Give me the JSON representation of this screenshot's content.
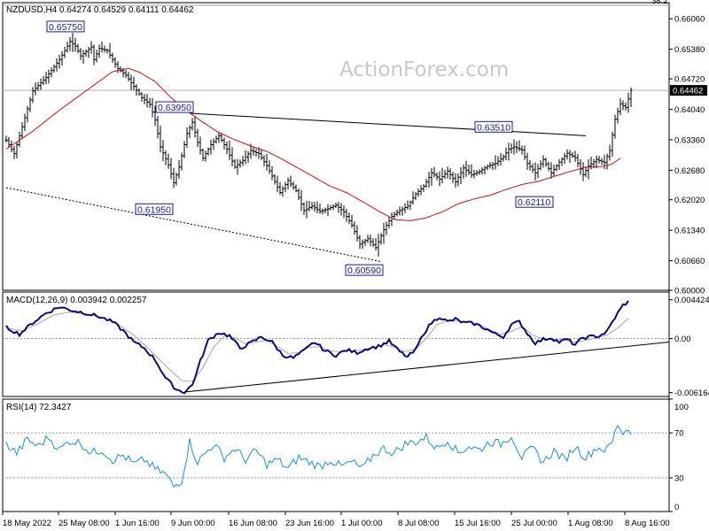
{
  "chart_data": [
    {
      "type": "candlestick",
      "header": "NZDUSD,H4  0.64274 0.64529 0.64111 0.64462",
      "watermark": "ActionForex.com",
      "ylim": [
        0.6,
        0.6642
      ],
      "y_ticks": [
        "0.66060",
        "0.65380",
        "0.64720",
        "0.64040",
        "0.63360",
        "0.62680",
        "0.62020",
        "0.61340",
        "0.60660",
        "0.60000"
      ],
      "y_tick_values": [
        0.6606,
        0.6538,
        0.6472,
        0.6404,
        0.6336,
        0.6268,
        0.6202,
        0.6134,
        0.6066,
        0.6
      ],
      "current_price": "0.64462",
      "current_price_value": 0.64462,
      "fib_label": "38.2",
      "fib_top_value": 0.6636,
      "x_labels": [
        "18 May 2022",
        "25 May 08:00",
        "1 Jun 16:00",
        "9 Jun 00:00",
        "16 Jun 08:00",
        "23 Jun 16:00",
        "1 Jul 00:00",
        "8 Jul 08:00",
        "15 Jul 16:00",
        "25 Jul 00:00",
        "1 Aug 08:00",
        "8 Aug 16:00"
      ],
      "price_anchors": [
        [
          0,
          0.6335
        ],
        [
          3,
          0.6305
        ],
        [
          10,
          0.6445
        ],
        [
          15,
          0.6475
        ],
        [
          20,
          0.6515
        ],
        [
          24,
          0.6555
        ],
        [
          26,
          0.6545
        ],
        [
          28,
          0.6523
        ],
        [
          32,
          0.6543
        ],
        [
          33,
          0.6515
        ],
        [
          35,
          0.654
        ],
        [
          38,
          0.6535
        ],
        [
          42,
          0.6495
        ],
        [
          45,
          0.648
        ],
        [
          48,
          0.6455
        ],
        [
          51,
          0.643
        ],
        [
          54,
          0.6415
        ],
        [
          56,
          0.638
        ],
        [
          58,
          0.632
        ],
        [
          61,
          0.628
        ],
        [
          63,
          0.624
        ],
        [
          65,
          0.6275
        ],
        [
          68,
          0.635
        ],
        [
          70,
          0.6375
        ],
        [
          72,
          0.633
        ],
        [
          74,
          0.6295
        ],
        [
          77,
          0.6325
        ],
        [
          80,
          0.6345
        ],
        [
          83,
          0.6315
        ],
        [
          86,
          0.6275
        ],
        [
          89,
          0.629
        ],
        [
          92,
          0.6312
        ],
        [
          95,
          0.6305
        ],
        [
          98,
          0.6278
        ],
        [
          100,
          0.6255
        ],
        [
          103,
          0.6218
        ],
        [
          106,
          0.6245
        ],
        [
          109,
          0.6222
        ],
        [
          112,
          0.6178
        ],
        [
          115,
          0.6188
        ],
        [
          118,
          0.6176
        ],
        [
          121,
          0.6182
        ],
        [
          124,
          0.619
        ],
        [
          127,
          0.6175
        ],
        [
          130,
          0.6145
        ],
        [
          133,
          0.6103
        ],
        [
          136,
          0.6115
        ],
        [
          139,
          0.6095
        ],
        [
          142,
          0.6135
        ],
        [
          145,
          0.6165
        ],
        [
          148,
          0.6178
        ],
        [
          151,
          0.6188
        ],
        [
          154,
          0.6215
        ],
        [
          157,
          0.6232
        ],
        [
          160,
          0.6262
        ],
        [
          163,
          0.6248
        ],
        [
          166,
          0.6266
        ],
        [
          169,
          0.6242
        ],
        [
          172,
          0.6273
        ],
        [
          175,
          0.6258
        ],
        [
          178,
          0.6265
        ],
        [
          181,
          0.6277
        ],
        [
          184,
          0.6283
        ],
        [
          187,
          0.6298
        ],
        [
          189,
          0.6315
        ],
        [
          191,
          0.632
        ],
        [
          194,
          0.6313
        ],
        [
          196,
          0.6283
        ],
        [
          199,
          0.6262
        ],
        [
          202,
          0.6292
        ],
        [
          205,
          0.6262
        ],
        [
          208,
          0.6286
        ],
        [
          211,
          0.6306
        ],
        [
          214,
          0.6296
        ],
        [
          217,
          0.6258
        ],
        [
          219,
          0.6277
        ],
        [
          222,
          0.6292
        ],
        [
          225,
          0.6285
        ],
        [
          227,
          0.6312
        ],
        [
          229,
          0.6382
        ],
        [
          231,
          0.6416
        ],
        [
          233,
          0.6408
        ],
        [
          235,
          0.6446
        ]
      ],
      "ma_anchors": [
        [
          0,
          0.6315
        ],
        [
          10,
          0.6355
        ],
        [
          20,
          0.6402
        ],
        [
          30,
          0.6445
        ],
        [
          40,
          0.6488
        ],
        [
          46,
          0.6495
        ],
        [
          50,
          0.6487
        ],
        [
          56,
          0.6466
        ],
        [
          62,
          0.643
        ],
        [
          68,
          0.64
        ],
        [
          74,
          0.6375
        ],
        [
          80,
          0.6352
        ],
        [
          86,
          0.6336
        ],
        [
          92,
          0.6322
        ],
        [
          98,
          0.631
        ],
        [
          104,
          0.6292
        ],
        [
          110,
          0.6272
        ],
        [
          116,
          0.6252
        ],
        [
          122,
          0.6232
        ],
        [
          128,
          0.6218
        ],
        [
          134,
          0.6198
        ],
        [
          140,
          0.6177
        ],
        [
          146,
          0.6158
        ],
        [
          152,
          0.6155
        ],
        [
          158,
          0.6162
        ],
        [
          164,
          0.6175
        ],
        [
          170,
          0.6193
        ],
        [
          176,
          0.6204
        ],
        [
          182,
          0.6212
        ],
        [
          188,
          0.6225
        ],
        [
          194,
          0.6236
        ],
        [
          200,
          0.6243
        ],
        [
          206,
          0.6254
        ],
        [
          212,
          0.6265
        ],
        [
          218,
          0.6275
        ],
        [
          224,
          0.6276
        ],
        [
          228,
          0.6282
        ],
        [
          231,
          0.6295
        ]
      ],
      "labels": [
        {
          "text": "0.65750",
          "value": 0.6575,
          "bar": 28,
          "side": "above"
        },
        {
          "text": "0.63950",
          "value": 0.6395,
          "bar": 69,
          "side": "above"
        },
        {
          "text": "0.61950",
          "value": 0.6195,
          "bar": 62,
          "side": "below"
        },
        {
          "text": "0.60590",
          "value": 0.6059,
          "bar": 141,
          "side": "below"
        },
        {
          "text": "0.63510",
          "value": 0.6351,
          "bar": 189,
          "side": "above"
        },
        {
          "text": "0.62110",
          "value": 0.6211,
          "bar": 205,
          "side": "below"
        }
      ],
      "trendlines": [
        {
          "style": "solid",
          "from": [
            69,
            0.6395
          ],
          "to": [
            218,
            0.6345
          ]
        },
        {
          "style": "dotted",
          "from": [
            0,
            0.6229
          ],
          "to": [
            141,
            0.6064
          ]
        }
      ]
    },
    {
      "type": "line",
      "header": "MACD(12,26,9) 0.003942 0.002257",
      "ylim": [
        -0.0066,
        0.0053
      ],
      "y_ticks": [
        "0.004424",
        "0.00",
        "-0.006164"
      ],
      "y_tick_values": [
        0.004424,
        0.0,
        -0.006164
      ],
      "macd_anchors": [
        [
          0,
          0.0013
        ],
        [
          5,
          0.0005
        ],
        [
          10,
          0.0018
        ],
        [
          15,
          0.0029
        ],
        [
          20,
          0.0036
        ],
        [
          25,
          0.0032
        ],
        [
          30,
          0.0029
        ],
        [
          35,
          0.0025
        ],
        [
          40,
          0.0019
        ],
        [
          44,
          0.0009
        ],
        [
          48,
          -0.0004
        ],
        [
          52,
          -0.0011
        ],
        [
          56,
          -0.0024
        ],
        [
          60,
          -0.0045
        ],
        [
          64,
          -0.0058
        ],
        [
          67,
          -0.0061
        ],
        [
          70,
          -0.0053
        ],
        [
          73,
          -0.0026
        ],
        [
          76,
          -0.0002
        ],
        [
          80,
          0.0007
        ],
        [
          84,
          0.0003
        ],
        [
          88,
          -0.0011
        ],
        [
          92,
          -0.0005
        ],
        [
          96,
          0.0002
        ],
        [
          100,
          -0.0004
        ],
        [
          104,
          -0.0019
        ],
        [
          108,
          -0.0022
        ],
        [
          112,
          -0.0014
        ],
        [
          116,
          -0.0004
        ],
        [
          120,
          -0.0014
        ],
        [
          124,
          -0.0019
        ],
        [
          128,
          -0.0013
        ],
        [
          132,
          -0.0016
        ],
        [
          136,
          -0.0011
        ],
        [
          140,
          -0.0009
        ],
        [
          144,
          -0.0003
        ],
        [
          148,
          -0.0015
        ],
        [
          151,
          -0.0021
        ],
        [
          154,
          -0.0013
        ],
        [
          157,
          0.0006
        ],
        [
          160,
          0.0018
        ],
        [
          163,
          0.0025
        ],
        [
          166,
          0.0019
        ],
        [
          169,
          0.0022
        ],
        [
          172,
          0.0018
        ],
        [
          176,
          0.0017
        ],
        [
          180,
          0.0012
        ],
        [
          184,
          0.0005
        ],
        [
          187,
          0.0002
        ],
        [
          190,
          0.0016
        ],
        [
          193,
          0.0019
        ],
        [
          196,
          0.0006
        ],
        [
          199,
          -0.0005
        ],
        [
          202,
          -0.0001
        ],
        [
          205,
          0.0001
        ],
        [
          208,
          -0.0004
        ],
        [
          211,
          -0.0001
        ],
        [
          214,
          -0.0007
        ],
        [
          217,
          0.0001
        ],
        [
          220,
          0.0002
        ],
        [
          223,
          0.0003
        ],
        [
          226,
          0.0008
        ],
        [
          229,
          0.0024
        ],
        [
          232,
          0.0038
        ],
        [
          234,
          0.0042
        ]
      ],
      "signal_anchors": [
        [
          0,
          0.0012
        ],
        [
          6,
          0.0009
        ],
        [
          12,
          0.0017
        ],
        [
          18,
          0.0027
        ],
        [
          24,
          0.003
        ],
        [
          30,
          0.0028
        ],
        [
          36,
          0.0024
        ],
        [
          42,
          0.0016
        ],
        [
          48,
          0.0004
        ],
        [
          54,
          -0.0013
        ],
        [
          60,
          -0.0031
        ],
        [
          66,
          -0.0048
        ],
        [
          70,
          -0.0049
        ],
        [
          74,
          -0.0033
        ],
        [
          78,
          -0.001
        ],
        [
          82,
          0.0003
        ],
        [
          86,
          0.0001
        ],
        [
          90,
          -0.0006
        ],
        [
          94,
          -0.0004
        ],
        [
          98,
          -0.0002
        ],
        [
          102,
          -0.0009
        ],
        [
          106,
          -0.0017
        ],
        [
          110,
          -0.0016
        ],
        [
          114,
          -0.001
        ],
        [
          118,
          -0.0009
        ],
        [
          122,
          -0.0014
        ],
        [
          126,
          -0.0015
        ],
        [
          130,
          -0.0014
        ],
        [
          134,
          -0.0013
        ],
        [
          138,
          -0.001
        ],
        [
          142,
          -0.0007
        ],
        [
          146,
          -0.001
        ],
        [
          150,
          -0.0015
        ],
        [
          154,
          -0.0012
        ],
        [
          158,
          0.0
        ],
        [
          162,
          0.0016
        ],
        [
          166,
          0.002
        ],
        [
          170,
          0.002
        ],
        [
          174,
          0.0019
        ],
        [
          178,
          0.0016
        ],
        [
          182,
          0.001
        ],
        [
          186,
          0.0005
        ],
        [
          190,
          0.0008
        ],
        [
          194,
          0.0014
        ],
        [
          198,
          0.0004
        ],
        [
          202,
          -0.0001
        ],
        [
          206,
          -0.0001
        ],
        [
          210,
          -0.0002
        ],
        [
          214,
          -0.0004
        ],
        [
          218,
          -0.0002
        ],
        [
          222,
          0.0001
        ],
        [
          226,
          0.0004
        ],
        [
          230,
          0.0012
        ],
        [
          234,
          0.0023
        ]
      ],
      "trendline": {
        "from": [
          67,
          -0.0061
        ],
        "to": [
          236,
          -0.0004
        ]
      }
    },
    {
      "type": "line",
      "header": "RSI(14) 72.3427",
      "ylim": [
        0,
        100
      ],
      "y_ticks": [
        "100",
        "70",
        "30",
        "0"
      ],
      "y_tick_values": [
        100,
        70,
        30,
        0
      ],
      "rsi_anchors": [
        [
          0,
          60
        ],
        [
          4,
          52
        ],
        [
          8,
          64
        ],
        [
          12,
          58
        ],
        [
          16,
          66
        ],
        [
          20,
          55
        ],
        [
          24,
          63
        ],
        [
          28,
          61
        ],
        [
          32,
          52
        ],
        [
          36,
          55
        ],
        [
          40,
          46
        ],
        [
          44,
          50
        ],
        [
          48,
          42
        ],
        [
          52,
          46
        ],
        [
          56,
          38
        ],
        [
          60,
          33
        ],
        [
          63,
          22
        ],
        [
          66,
          28
        ],
        [
          69,
          62
        ],
        [
          72,
          44
        ],
        [
          75,
          52
        ],
        [
          78,
          60
        ],
        [
          82,
          48
        ],
        [
          86,
          56
        ],
        [
          90,
          46
        ],
        [
          94,
          54
        ],
        [
          98,
          42
        ],
        [
          102,
          46
        ],
        [
          106,
          38
        ],
        [
          110,
          48
        ],
        [
          114,
          44
        ],
        [
          118,
          40
        ],
        [
          122,
          46
        ],
        [
          126,
          40
        ],
        [
          130,
          44
        ],
        [
          134,
          38
        ],
        [
          138,
          50
        ],
        [
          142,
          56
        ],
        [
          146,
          52
        ],
        [
          150,
          60
        ],
        [
          154,
          62
        ],
        [
          158,
          66
        ],
        [
          162,
          56
        ],
        [
          166,
          64
        ],
        [
          170,
          52
        ],
        [
          174,
          58
        ],
        [
          178,
          55
        ],
        [
          182,
          62
        ],
        [
          186,
          60
        ],
        [
          190,
          68
        ],
        [
          194,
          48
        ],
        [
          198,
          56
        ],
        [
          202,
          44
        ],
        [
          206,
          54
        ],
        [
          210,
          46
        ],
        [
          214,
          58
        ],
        [
          218,
          48
        ],
        [
          222,
          57
        ],
        [
          226,
          55
        ],
        [
          228,
          62
        ],
        [
          230,
          78
        ],
        [
          232,
          70
        ],
        [
          234,
          74
        ],
        [
          235,
          72
        ]
      ]
    }
  ]
}
